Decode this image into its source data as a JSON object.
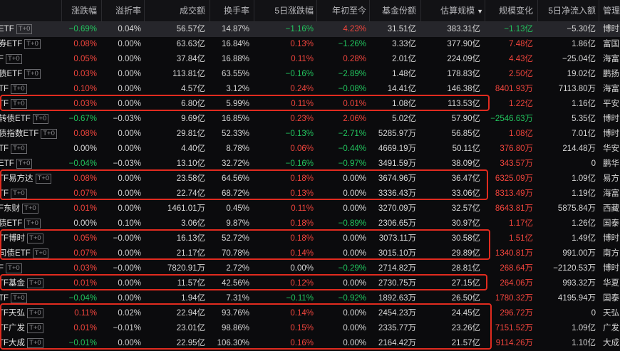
{
  "columns": [
    {
      "key": "chg",
      "label": "涨跌幅"
    },
    {
      "key": "premium",
      "label": "溢折率"
    },
    {
      "key": "turnover",
      "label": "成交额"
    },
    {
      "key": "turnover_rate",
      "label": "换手率"
    },
    {
      "key": "chg5d",
      "label": "5日涨跌幅"
    },
    {
      "key": "ytd",
      "label": "年初至今"
    },
    {
      "key": "shares",
      "label": "基金份额"
    },
    {
      "key": "est_scale",
      "label": "估算规模"
    },
    {
      "key": "scale_change",
      "label": "规模变化"
    },
    {
      "key": "inflow5d",
      "label": "5日净流入额"
    },
    {
      "key": "manager",
      "label": "管理"
    }
  ],
  "sort": {
    "column": "est_scale",
    "direction": "desc",
    "icon": "caret-down-icon"
  },
  "tag_label": "T+0",
  "colors": {
    "up": "#f2453d",
    "down": "#22c55e",
    "highlight": "#e12b1f",
    "background": "#0b0b0d"
  },
  "rows": [
    {
      "name": "ETF",
      "chg": "−0.69%",
      "premium": "0.04%",
      "turnover": "56.57亿",
      "turnover_rate": "14.87%",
      "chg5d": "−1.16%",
      "ytd": "4.23%",
      "shares": "31.51亿",
      "est_scale": "383.31亿",
      "scale_change": "−1.13亿",
      "inflow5d": "−5.30亿",
      "manager": "博时"
    },
    {
      "name": "券ETF",
      "chg": "0.08%",
      "premium": "0.00%",
      "turnover": "63.63亿",
      "turnover_rate": "16.84%",
      "chg5d": "0.13%",
      "ytd": "−1.26%",
      "shares": "3.33亿",
      "est_scale": "377.90亿",
      "scale_change": "7.48亿",
      "inflow5d": "1.86亿",
      "manager": "富国"
    },
    {
      "name": "F",
      "chg": "0.05%",
      "premium": "0.00%",
      "turnover": "37.84亿",
      "turnover_rate": "16.88%",
      "chg5d": "0.11%",
      "ytd": "0.28%",
      "shares": "2.01亿",
      "est_scale": "224.09亿",
      "scale_change": "4.43亿",
      "inflow5d": "−25.04亿",
      "manager": "海富"
    },
    {
      "name": "债ETF",
      "chg": "0.03%",
      "premium": "0.00%",
      "turnover": "113.81亿",
      "turnover_rate": "63.55%",
      "chg5d": "−0.16%",
      "ytd": "−2.89%",
      "shares": "1.48亿",
      "est_scale": "178.83亿",
      "scale_change": "2.50亿",
      "inflow5d": "19.02亿",
      "manager": "鹏扬"
    },
    {
      "name": "TF",
      "chg": "0.10%",
      "premium": "0.00%",
      "turnover": "4.57亿",
      "turnover_rate": "3.12%",
      "chg5d": "0.24%",
      "ytd": "−0.08%",
      "shares": "14.41亿",
      "est_scale": "146.38亿",
      "scale_change": "8401.93万",
      "inflow5d": "7113.80万",
      "manager": "海富"
    },
    {
      "name": "TF",
      "chg": "0.03%",
      "premium": "0.00%",
      "turnover": "6.80亿",
      "turnover_rate": "5.99%",
      "chg5d": "0.11%",
      "ytd": "0.01%",
      "shares": "1.08亿",
      "est_scale": "113.53亿",
      "scale_change": "1.22亿",
      "inflow5d": "1.16亿",
      "manager": "平安"
    },
    {
      "name": "转债ETF",
      "chg": "−0.67%",
      "premium": "−0.03%",
      "turnover": "9.69亿",
      "turnover_rate": "16.85%",
      "chg5d": "0.23%",
      "ytd": "2.06%",
      "shares": "5.02亿",
      "est_scale": "57.90亿",
      "scale_change": "−2546.63万",
      "inflow5d": "5.35亿",
      "manager": "博时"
    },
    {
      "name": "债指数ETF",
      "chg": "0.08%",
      "premium": "0.00%",
      "turnover": "29.81亿",
      "turnover_rate": "52.33%",
      "chg5d": "−0.13%",
      "ytd": "−2.71%",
      "shares": "5285.97万",
      "est_scale": "56.85亿",
      "scale_change": "1.08亿",
      "inflow5d": "7.01亿",
      "manager": "博时"
    },
    {
      "name": "TF",
      "chg": "0.00%",
      "premium": "0.00%",
      "turnover": "4.40亿",
      "turnover_rate": "8.78%",
      "chg5d": "0.06%",
      "ytd": "−0.44%",
      "shares": "4669.19万",
      "est_scale": "50.11亿",
      "scale_change": "376.80万",
      "inflow5d": "214.48万",
      "manager": "华安"
    },
    {
      "name": "ETF",
      "chg": "−0.04%",
      "premium": "−0.03%",
      "turnover": "13.10亿",
      "turnover_rate": "32.72%",
      "chg5d": "−0.16%",
      "ytd": "−0.97%",
      "shares": "3491.59万",
      "est_scale": "38.09亿",
      "scale_change": "343.57万",
      "inflow5d": "0",
      "manager": "鹏华"
    },
    {
      "name": "TF易方达",
      "chg": "0.08%",
      "premium": "0.00%",
      "turnover": "23.58亿",
      "turnover_rate": "64.56%",
      "chg5d": "0.18%",
      "ytd": "0.00%",
      "shares": "3674.96万",
      "est_scale": "36.47亿",
      "scale_change": "6325.09万",
      "inflow5d": "1.09亿",
      "manager": "易方"
    },
    {
      "name": "TF",
      "chg": "0.07%",
      "premium": "0.00%",
      "turnover": "22.74亿",
      "turnover_rate": "68.72%",
      "chg5d": "0.13%",
      "ytd": "0.00%",
      "shares": "3336.43万",
      "est_scale": "33.06亿",
      "scale_change": "8313.49万",
      "inflow5d": "1.19亿",
      "manager": "海富"
    },
    {
      "name": "F东财",
      "chg": "0.01%",
      "premium": "0.00%",
      "turnover": "1461.01万",
      "turnover_rate": "0.45%",
      "chg5d": "0.11%",
      "ytd": "0.00%",
      "shares": "3270.09万",
      "est_scale": "32.57亿",
      "scale_change": "8643.81万",
      "inflow5d": "5875.84万",
      "manager": "西藏"
    },
    {
      "name": "债ETF",
      "chg": "0.00%",
      "premium": "0.10%",
      "turnover": "3.06亿",
      "turnover_rate": "9.87%",
      "chg5d": "0.18%",
      "ytd": "−0.89%",
      "shares": "2306.65万",
      "est_scale": "30.97亿",
      "scale_change": "1.17亿",
      "inflow5d": "1.26亿",
      "manager": "国泰"
    },
    {
      "name": "TF博时",
      "chg": "0.05%",
      "premium": "−0.00%",
      "turnover": "16.13亿",
      "turnover_rate": "52.72%",
      "chg5d": "0.18%",
      "ytd": "0.00%",
      "shares": "3073.11万",
      "est_scale": "30.58亿",
      "scale_change": "1.51亿",
      "inflow5d": "1.49亿",
      "manager": "博时"
    },
    {
      "name": "司债ETF",
      "chg": "0.07%",
      "premium": "0.00%",
      "turnover": "21.17亿",
      "turnover_rate": "70.78%",
      "chg5d": "0.14%",
      "ytd": "0.00%",
      "shares": "3015.10万",
      "est_scale": "29.89亿",
      "scale_change": "1340.81万",
      "inflow5d": "991.00万",
      "manager": "南方"
    },
    {
      "name": "F",
      "chg": "0.03%",
      "premium": "−0.00%",
      "turnover": "7820.91万",
      "turnover_rate": "2.72%",
      "chg5d": "0.00%",
      "ytd": "−0.29%",
      "shares": "2714.82万",
      "est_scale": "28.81亿",
      "scale_change": "268.64万",
      "inflow5d": "−2120.53万",
      "manager": "博时"
    },
    {
      "name": "TF基金",
      "chg": "0.01%",
      "premium": "0.00%",
      "turnover": "11.57亿",
      "turnover_rate": "42.56%",
      "chg5d": "0.12%",
      "ytd": "0.00%",
      "shares": "2730.75万",
      "est_scale": "27.15亿",
      "scale_change": "264.06万",
      "inflow5d": "993.32万",
      "manager": "华夏"
    },
    {
      "name": "TF",
      "chg": "−0.04%",
      "premium": "0.00%",
      "turnover": "1.94亿",
      "turnover_rate": "7.31%",
      "chg5d": "−0.11%",
      "ytd": "−0.92%",
      "shares": "1892.63万",
      "est_scale": "26.50亿",
      "scale_change": "1780.32万",
      "inflow5d": "4195.94万",
      "manager": "国泰"
    },
    {
      "name": "TF天弘",
      "chg": "0.11%",
      "premium": "0.02%",
      "turnover": "22.94亿",
      "turnover_rate": "93.76%",
      "chg5d": "0.14%",
      "ytd": "0.00%",
      "shares": "2454.23万",
      "est_scale": "24.45亿",
      "scale_change": "296.72万",
      "inflow5d": "0",
      "manager": "天弘"
    },
    {
      "name": "TF广发",
      "chg": "0.01%",
      "premium": "−0.01%",
      "turnover": "23.01亿",
      "turnover_rate": "98.86%",
      "chg5d": "0.15%",
      "ytd": "0.00%",
      "shares": "2335.77万",
      "est_scale": "23.26亿",
      "scale_change": "7151.52万",
      "inflow5d": "1.09亿",
      "manager": "广发"
    },
    {
      "name": "TF大成",
      "chg": "−0.01%",
      "premium": "0.00%",
      "turnover": "22.95亿",
      "turnover_rate": "106.30%",
      "chg5d": "0.16%",
      "ytd": "0.00%",
      "shares": "2164.42万",
      "est_scale": "21.57亿",
      "scale_change": "9114.26万",
      "inflow5d": "1.10亿",
      "manager": "大成"
    }
  ]
}
